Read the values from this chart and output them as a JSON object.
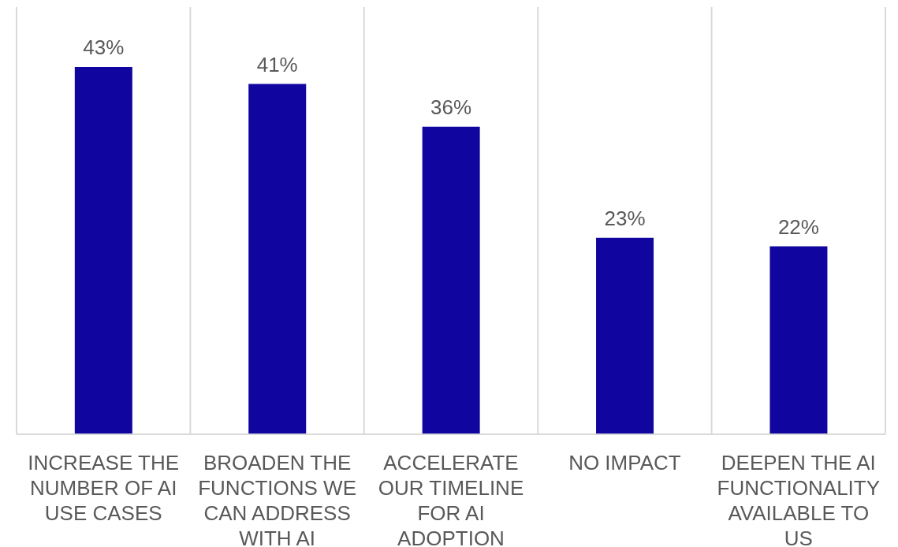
{
  "chart_data": {
    "type": "bar",
    "categories": [
      "INCREASE THE NUMBER OF AI USE CASES",
      "BROADEN THE FUNCTIONS WE CAN ADDRESS WITH AI",
      "ACCELERATE OUR TIMELINE FOR AI ADOPTION",
      "NO IMPACT",
      "DEEPEN THE AI FUNCTIONALITY AVAILABLE TO US"
    ],
    "values": [
      43,
      41,
      36,
      23,
      22
    ],
    "value_labels": [
      "43%",
      "41%",
      "36%",
      "23%",
      "22%"
    ],
    "color": "#10069f",
    "ylim": [
      0,
      50
    ],
    "grid": "x",
    "tick_labels": "x"
  }
}
